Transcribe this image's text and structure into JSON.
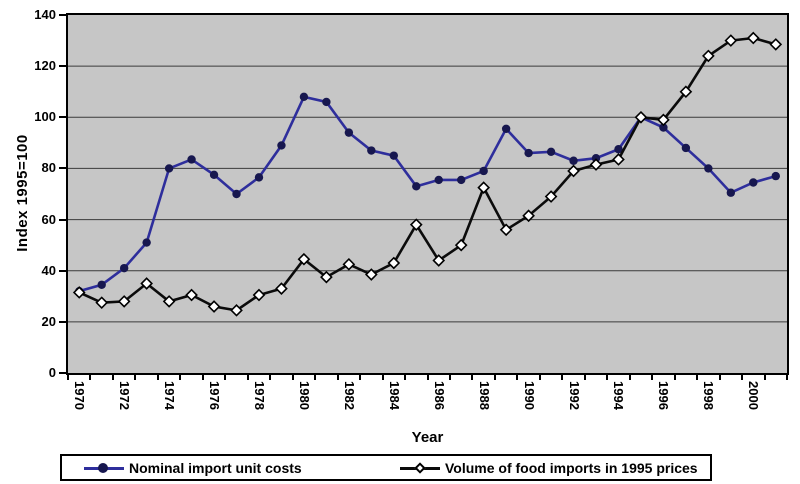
{
  "figure": {
    "y_axis_title": "Index 1995=100",
    "x_axis_title": "Year"
  },
  "colors": {
    "plot_background": "#c6c6c6",
    "plot_border": "#000000",
    "gridline": "#3a3a3a",
    "series1_line": "#2e2e9c",
    "series1_marker": "#17174f",
    "series2_line": "#0b0b0b",
    "series2_marker_fill": "#ffffff",
    "series2_marker_stroke": "#000000"
  },
  "chart_data": {
    "type": "line",
    "title": "",
    "xlabel": "Year",
    "ylabel": "Index 1995=100",
    "ylim": [
      0,
      140
    ],
    "y_ticks": [
      0,
      20,
      40,
      60,
      80,
      100,
      120,
      140
    ],
    "grid": "horizontal",
    "legend_position": "bottom",
    "x": [
      1970,
      1971,
      1972,
      1973,
      1974,
      1975,
      1976,
      1977,
      1978,
      1979,
      1980,
      1981,
      1982,
      1983,
      1984,
      1985,
      1986,
      1987,
      1988,
      1989,
      1990,
      1991,
      1992,
      1993,
      1994,
      1995,
      1996,
      1997,
      1998,
      1999,
      2000,
      2001
    ],
    "x_tick_labels": [
      "1970",
      "1972",
      "1974",
      "1976",
      "1978",
      "1980",
      "1982",
      "1984",
      "1986",
      "1988",
      "1990",
      "1992",
      "1994",
      "1996",
      "1998",
      "2000"
    ],
    "x_label_every": 2,
    "series": [
      {
        "name": "Nominal import unit costs",
        "marker": "circle",
        "line_color": "#2e2e9c",
        "marker_color": "#17174f",
        "values": [
          32,
          34.5,
          41,
          51,
          80,
          83.5,
          77.5,
          70,
          76.5,
          89,
          108,
          106,
          94,
          87,
          85,
          73,
          75.5,
          75.5,
          79,
          95.5,
          86,
          86.5,
          83,
          84,
          87.5,
          100,
          96,
          88,
          80,
          70.5,
          74.5,
          77
        ]
      },
      {
        "name": "Volume of food imports in 1995 prices",
        "marker": "diamond",
        "line_color": "#0b0b0b",
        "marker_color": "#ffffff",
        "values": [
          31.5,
          27.5,
          28,
          35,
          28,
          30.5,
          26,
          24.5,
          30.5,
          33,
          44.5,
          37.5,
          42.5,
          38.5,
          43,
          58,
          44,
          50,
          72.5,
          56,
          61.5,
          69,
          79,
          81.5,
          83.5,
          100,
          99,
          110,
          124,
          130,
          131,
          128.5
        ]
      }
    ]
  },
  "legend": {
    "series1_label": "Nominal import unit costs",
    "series2_label": "Volume of food imports in 1995 prices"
  }
}
